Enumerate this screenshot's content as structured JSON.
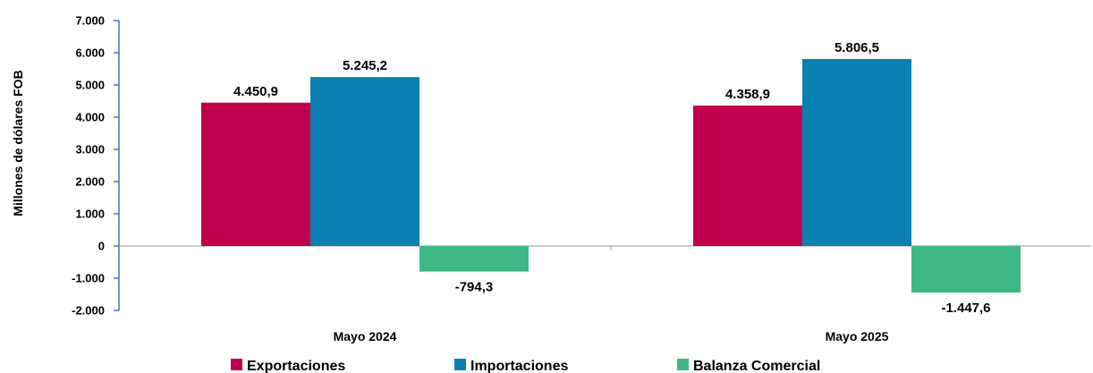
{
  "chart_data": {
    "type": "bar",
    "title": "",
    "xlabel": "",
    "ylabel": "Millones de dólares FOB",
    "ylim": [
      -2000,
      7000
    ],
    "yticks": [
      7000,
      6000,
      5000,
      4000,
      3000,
      2000,
      1000,
      0,
      -1000,
      -2000
    ],
    "ytick_labels": [
      "7.000",
      "6.000",
      "5.000",
      "4.000",
      "3.000",
      "2.000",
      "1.000",
      "0",
      "-1.000",
      "-2.000"
    ],
    "categories": [
      "Mayo 2024",
      "Mayo 2025"
    ],
    "series": [
      {
        "name": "Exportaciones",
        "color": "#C0004C",
        "values": [
          4450.9,
          4358.9
        ],
        "labels": [
          "4.450,9",
          "4.358,9"
        ]
      },
      {
        "name": "Importaciones",
        "color": "#0A7FB0",
        "values": [
          5245.2,
          5806.5
        ],
        "labels": [
          "5.245,2",
          "5.806,5"
        ]
      },
      {
        "name": "Balanza Comercial",
        "color": "#3EB886",
        "values": [
          -794.3,
          -1447.6
        ],
        "labels": [
          "-794,3",
          "-1.447,6"
        ]
      }
    ],
    "grid": false,
    "legend_position": "bottom",
    "axis_color": "#4472C4"
  }
}
